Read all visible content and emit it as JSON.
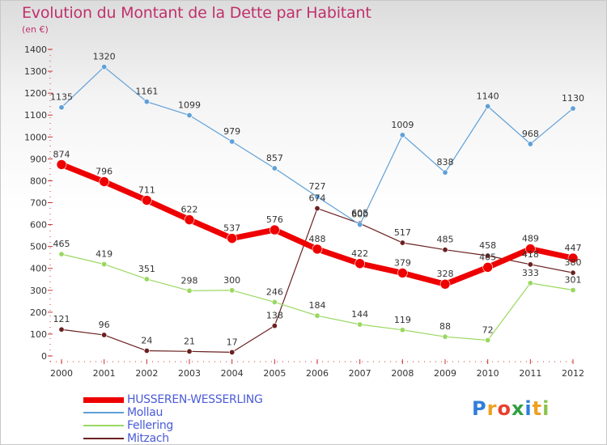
{
  "header": {
    "title": "Evolution du Montant de la Dette par Habitant",
    "subtitle": "(en €)"
  },
  "logo": {
    "text": "Proxiti",
    "colors": [
      "#2f7fd8",
      "#f0a020",
      "#e84030",
      "#30a040",
      "#2f7fd8",
      "#f0a020",
      "#8bc34a"
    ]
  },
  "colors": {
    "HUSSEREN-WESSERLING": "#ee0000",
    "Mollau": "#5fa0d8",
    "Fellering": "#9ad860",
    "Mitzach": "#6b2020",
    "title": "#c0306a",
    "legend_text": "#4a5bd8"
  },
  "chart_data": {
    "type": "line",
    "title": "Evolution du Montant de la Dette par Habitant",
    "subtitle": "(en €)",
    "xlabel": "",
    "ylabel": "",
    "x": [
      "2000",
      "2001",
      "2002",
      "2003",
      "2004",
      "2005",
      "2006",
      "2007",
      "2008",
      "2009",
      "2010",
      "2011",
      "2012"
    ],
    "ylim": [
      0,
      1400
    ],
    "yticks": [
      0,
      100,
      200,
      300,
      400,
      500,
      600,
      700,
      800,
      900,
      1000,
      1100,
      1200,
      1300,
      1400
    ],
    "grid": false,
    "legend_position": "bottom-left",
    "series": [
      {
        "name": "HUSSEREN-WESSERLING",
        "values": [
          874,
          796,
          711,
          622,
          537,
          576,
          488,
          422,
          379,
          328,
          405,
          489,
          447
        ]
      },
      {
        "name": "Mollau",
        "values": [
          1135,
          1320,
          1161,
          1099,
          979,
          857,
          727,
          600,
          1009,
          838,
          1140,
          968,
          1130
        ]
      },
      {
        "name": "Fellering",
        "values": [
          465,
          419,
          351,
          298,
          300,
          246,
          184,
          144,
          119,
          88,
          72,
          333,
          301
        ]
      },
      {
        "name": "Mitzach",
        "values": [
          121,
          96,
          24,
          21,
          17,
          138,
          674,
          605,
          517,
          485,
          458,
          418,
          380
        ]
      }
    ]
  }
}
